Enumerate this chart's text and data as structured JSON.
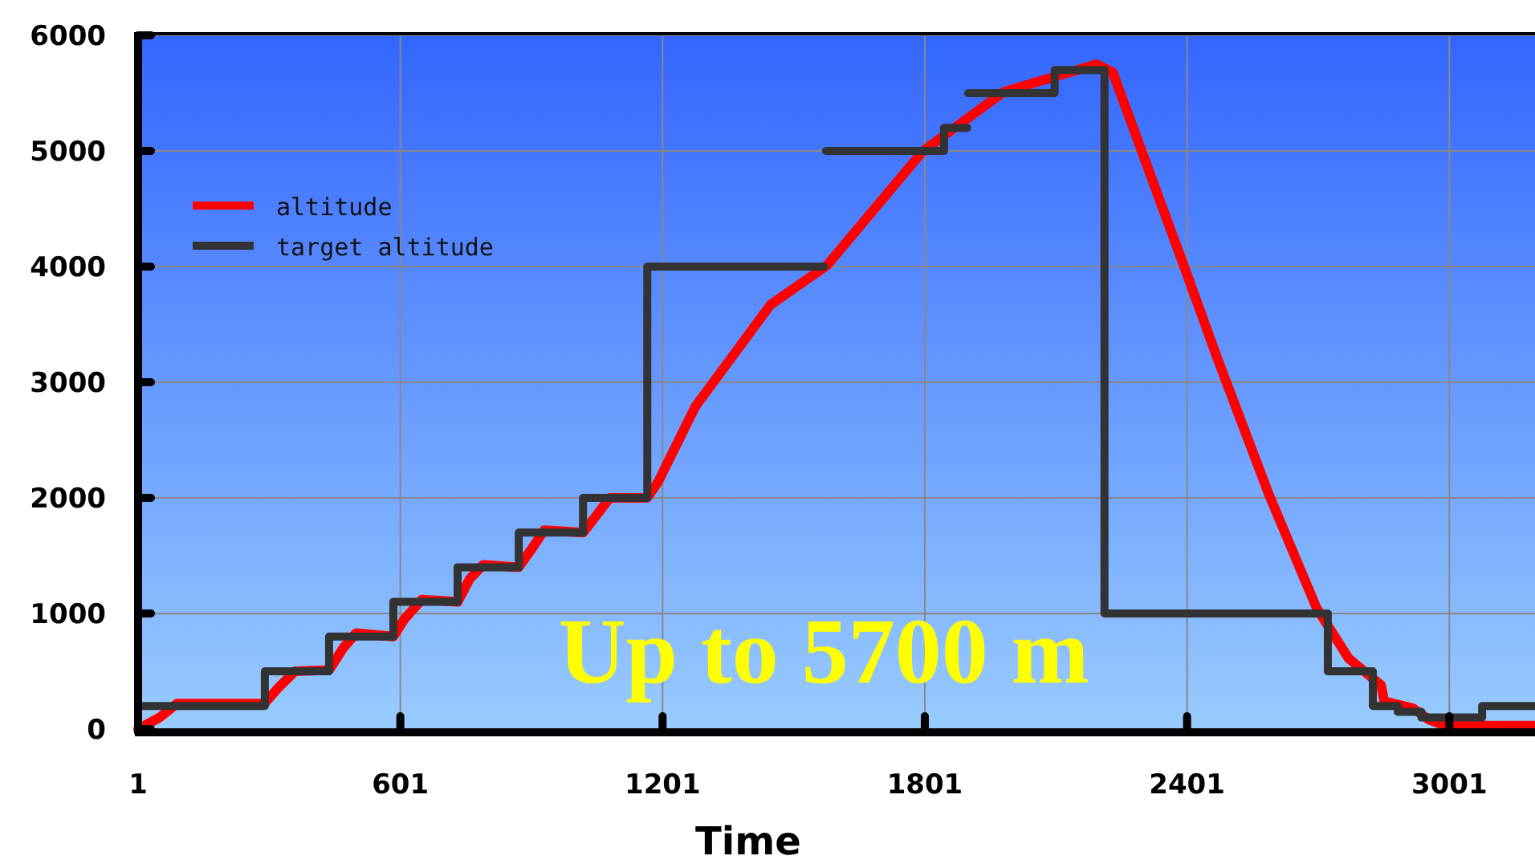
{
  "chart_data": {
    "type": "line",
    "xlabel": "Time",
    "annotations": [
      "Up to 5700 m"
    ],
    "xlim": [
      1,
      3197
    ],
    "xticks": [
      1,
      601,
      1201,
      1801,
      2401,
      3001
    ],
    "ylim": [
      0,
      6000
    ],
    "yticks": [
      0,
      1000,
      2000,
      3000,
      4000,
      5000,
      6000
    ],
    "grid": true,
    "legend": "top left",
    "line_style": "solid",
    "series": [
      {
        "name": "altitude",
        "color": "#ff0000",
        "x": [
          1,
          50,
          90,
          290,
          320,
          360,
          438,
          470,
          500,
          585,
          610,
          650,
          732,
          760,
          790,
          872,
          900,
          930,
          1019,
          1050,
          1080,
          1166,
          1191,
          1276,
          1448,
          1577,
          1797,
          1981,
          2194,
          2231,
          2404,
          2466,
          2587,
          2697,
          2771,
          2845,
          2852,
          2918,
          2955,
          2991,
          3065,
          3130,
          3197
        ],
        "values": [
          0,
          100,
          220,
          220,
          350,
          500,
          510,
          700,
          830,
          800,
          950,
          1120,
          1100,
          1300,
          1420,
          1400,
          1550,
          1720,
          1700,
          1850,
          2000,
          2000,
          2140,
          2790,
          3670,
          4010,
          5000,
          5510,
          5750,
          5680,
          3900,
          3250,
          2040,
          1050,
          610,
          380,
          240,
          180,
          80,
          30,
          30,
          30,
          30
        ]
      },
      {
        "name": "target altitude",
        "type": "step",
        "color": "#333333",
        "x": [
          1,
          291,
          438,
          585,
          732,
          872,
          1019,
          1166,
          1570,
          1572,
          1575,
          1845,
          1898,
          1899,
          1900,
          2098,
          2212,
          2723,
          2826,
          2883,
          2937,
          3076,
          3197
        ],
        "values": [
          200,
          500,
          800,
          1100,
          1400,
          1700,
          2000,
          4000,
          4000,
          null,
          5000,
          5200,
          5200,
          null,
          5500,
          5700,
          1000,
          500,
          200,
          150,
          100,
          200,
          200
        ]
      }
    ]
  }
}
